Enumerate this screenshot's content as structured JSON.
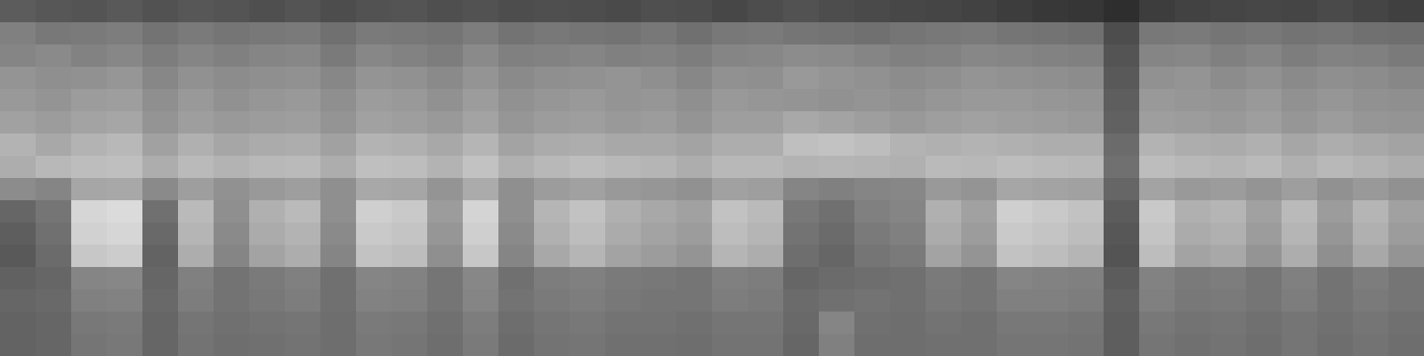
{
  "chart_data": {
    "type": "heatmap",
    "tick_labels": false,
    "zlim": [
      0,
      100
    ],
    "cells": [
      [
        36,
        34,
        33,
        35,
        32,
        34,
        33,
        31,
        33,
        30,
        32,
        33,
        31,
        32,
        30,
        31,
        30,
        29,
        31,
        30,
        28,
        30,
        32,
        30,
        29,
        28,
        27,
        26,
        24,
        22,
        21,
        18,
        24,
        26,
        27,
        28,
        27,
        29,
        27,
        25
      ],
      [
        50,
        47,
        48,
        49,
        45,
        48,
        46,
        47,
        48,
        44,
        48,
        47,
        46,
        49,
        45,
        47,
        46,
        45,
        47,
        44,
        47,
        48,
        46,
        45,
        44,
        46,
        47,
        48,
        46,
        45,
        44,
        30,
        47,
        48,
        46,
        47,
        45,
        46,
        44,
        43
      ],
      [
        52,
        54,
        51,
        53,
        49,
        52,
        50,
        52,
        53,
        48,
        53,
        51,
        49,
        54,
        50,
        51,
        52,
        50,
        51,
        49,
        52,
        53,
        55,
        54,
        52,
        50,
        51,
        53,
        52,
        51,
        50,
        33,
        52,
        53,
        50,
        52,
        49,
        51,
        50,
        48
      ],
      [
        58,
        56,
        57,
        59,
        53,
        57,
        55,
        56,
        57,
        53,
        58,
        57,
        54,
        58,
        54,
        56,
        57,
        58,
        56,
        53,
        57,
        56,
        60,
        58,
        57,
        55,
        56,
        58,
        57,
        56,
        55,
        35,
        57,
        58,
        55,
        57,
        54,
        56,
        55,
        53
      ],
      [
        60,
        58,
        61,
        62,
        56,
        60,
        57,
        59,
        60,
        56,
        61,
        60,
        57,
        61,
        57,
        59,
        60,
        58,
        59,
        56,
        60,
        59,
        58,
        57,
        58,
        57,
        59,
        60,
        60,
        59,
        58,
        37,
        60,
        59,
        58,
        60,
        57,
        59,
        57,
        56
      ],
      [
        63,
        61,
        64,
        65,
        58,
        62,
        60,
        61,
        62,
        58,
        63,
        62,
        60,
        64,
        59,
        61,
        62,
        60,
        61,
        58,
        62,
        62,
        66,
        64,
        62,
        60,
        62,
        63,
        62,
        61,
        60,
        38,
        62,
        61,
        60,
        62,
        59,
        61,
        59,
        58
      ],
      [
        70,
        66,
        70,
        72,
        63,
        69,
        65,
        67,
        68,
        63,
        70,
        69,
        66,
        71,
        64,
        67,
        68,
        66,
        66,
        64,
        68,
        68,
        75,
        76,
        74,
        70,
        69,
        70,
        69,
        68,
        68,
        42,
        70,
        68,
        67,
        69,
        65,
        68,
        66,
        64
      ],
      [
        68,
        72,
        74,
        75,
        68,
        73,
        70,
        72,
        73,
        68,
        75,
        74,
        70,
        76,
        69,
        72,
        74,
        72,
        71,
        68,
        72,
        72,
        70,
        71,
        70,
        69,
        73,
        72,
        74,
        73,
        72,
        44,
        74,
        72,
        71,
        73,
        69,
        72,
        70,
        68
      ],
      [
        55,
        52,
        65,
        66,
        54,
        62,
        57,
        60,
        62,
        56,
        66,
        65,
        58,
        67,
        56,
        61,
        63,
        60,
        59,
        57,
        63,
        62,
        52,
        50,
        52,
        53,
        60,
        58,
        65,
        64,
        63,
        40,
        64,
        60,
        61,
        58,
        62,
        57,
        60,
        57
      ],
      [
        40,
        46,
        84,
        86,
        44,
        73,
        56,
        69,
        73,
        56,
        81,
        79,
        61,
        83,
        56,
        71,
        76,
        69,
        66,
        63,
        76,
        73,
        47,
        44,
        50,
        52,
        69,
        63,
        81,
        79,
        76,
        36,
        79,
        69,
        71,
        63,
        73,
        61,
        71,
        63
      ],
      [
        37,
        44,
        82,
        84,
        41,
        71,
        54,
        67,
        70,
        54,
        79,
        77,
        59,
        81,
        54,
        69,
        74,
        67,
        64,
        61,
        74,
        71,
        45,
        42,
        48,
        50,
        67,
        61,
        79,
        77,
        74,
        34,
        77,
        67,
        69,
        61,
        71,
        59,
        69,
        61
      ],
      [
        35,
        42,
        78,
        80,
        39,
        68,
        52,
        64,
        68,
        52,
        76,
        74,
        56,
        78,
        52,
        66,
        71,
        64,
        61,
        58,
        71,
        68,
        43,
        40,
        46,
        48,
        64,
        58,
        76,
        74,
        71,
        33,
        74,
        64,
        66,
        58,
        68,
        56,
        66,
        58
      ],
      [
        38,
        40,
        52,
        53,
        40,
        50,
        45,
        48,
        50,
        44,
        52,
        51,
        46,
        53,
        44,
        49,
        50,
        48,
        47,
        46,
        50,
        49,
        40,
        42,
        43,
        44,
        48,
        46,
        52,
        51,
        50,
        36,
        51,
        48,
        49,
        46,
        50,
        45,
        49,
        46
      ],
      [
        40,
        41,
        50,
        51,
        41,
        49,
        45,
        47,
        49,
        44,
        51,
        50,
        46,
        52,
        45,
        48,
        49,
        47,
        46,
        46,
        49,
        48,
        42,
        44,
        45,
        44,
        47,
        46,
        50,
        50,
        49,
        38,
        50,
        47,
        48,
        46,
        49,
        45,
        48,
        46
      ],
      [
        39,
        40,
        47,
        48,
        40,
        46,
        44,
        45,
        46,
        43,
        48,
        47,
        44,
        49,
        43,
        46,
        47,
        45,
        45,
        44,
        46,
        46,
        41,
        52,
        44,
        43,
        45,
        44,
        47,
        47,
        46,
        37,
        47,
        45,
        46,
        44,
        46,
        44,
        46,
        44
      ],
      [
        39,
        40,
        46,
        47,
        40,
        45,
        43,
        44,
        45,
        43,
        47,
        46,
        43,
        48,
        42,
        45,
        46,
        44,
        44,
        43,
        45,
        45,
        40,
        50,
        43,
        43,
        44,
        44,
        46,
        46,
        45,
        37,
        46,
        44,
        45,
        43,
        46,
        43,
        45,
        43
      ]
    ]
  }
}
